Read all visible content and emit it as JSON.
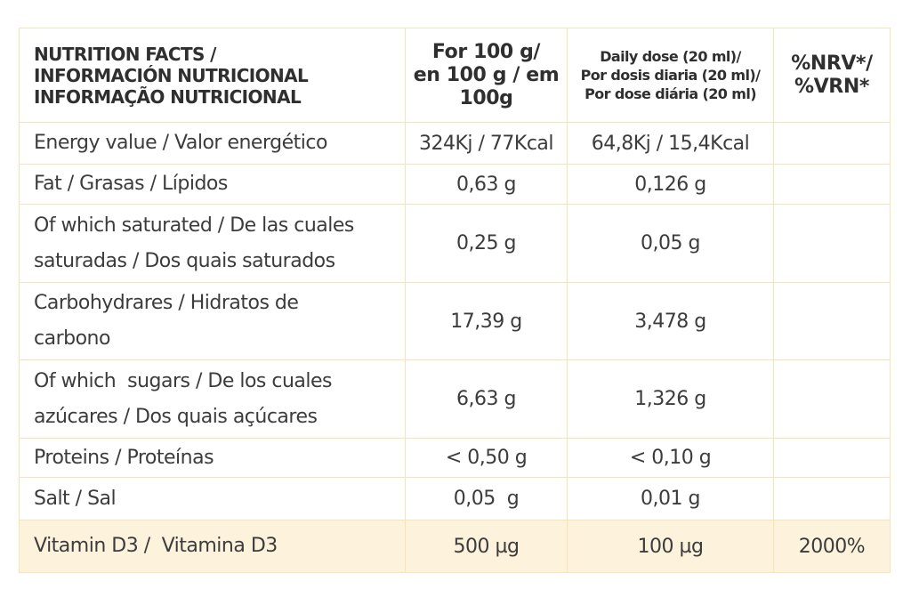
{
  "header": {
    "label_line1": "NUTRITION FACTS /",
    "label_line2": "INFORMACIÓN NUTRICIONAL",
    "label_line3": "INFORMAÇÃO NUTRICIONAL",
    "per100_line1": "For 100 g/",
    "per100_line2": "en 100 g / em",
    "per100_line3": "100g",
    "dose_line1": "Daily dose (20 ml)/",
    "dose_line2": "Por dosis diaria (20 ml)/",
    "dose_line3": "Por dose diária (20 ml)",
    "nrv_line1": "%NRV*/",
    "nrv_line2": "%VRN*"
  },
  "rows": [
    {
      "label_line1": "Energy value / Valor energético",
      "label_line2": "",
      "per100": "324Kj / 77Kcal",
      "dose": "64,8Kj / 15,4Kcal",
      "nrv": ""
    },
    {
      "label_line1": "Fat / Grasas / Lípidos",
      "label_line2": "",
      "per100": "0,63 g",
      "dose": "0,126 g",
      "nrv": ""
    },
    {
      "label_line1": "Of which saturated / De las cuales",
      "label_line2": "saturadas / Dos quais saturados",
      "per100": "0,25 g",
      "dose": "0,05 g",
      "nrv": ""
    },
    {
      "label_line1": "Carbohydrares / Hidratos de",
      "label_line2": "carbono",
      "per100": "17,39 g",
      "dose": "3,478 g",
      "nrv": ""
    },
    {
      "label_line1": "Of which  sugars / De los cuales",
      "label_line2": "azúcares / Dos quais açúcares",
      "per100": "6,63 g",
      "dose": "1,326 g",
      "nrv": ""
    },
    {
      "label_line1": "Proteins / Proteínas",
      "label_line2": "",
      "per100": "< 0,50 g",
      "dose": "< 0,10 g",
      "nrv": ""
    },
    {
      "label_line1": "Salt / Sal",
      "label_line2": "",
      "per100": "0,05  g",
      "dose": "0,01 g",
      "nrv": ""
    },
    {
      "label_line1": "Vitamin D3 /  Vitamina D3",
      "label_line2": "",
      "per100": "500 µg",
      "dose": "100 µg",
      "nrv": "2000%"
    }
  ],
  "colors": {
    "border": "#f6e3b6",
    "highlight_row": "#fdf3dd",
    "text": "#3c3c3c"
  }
}
